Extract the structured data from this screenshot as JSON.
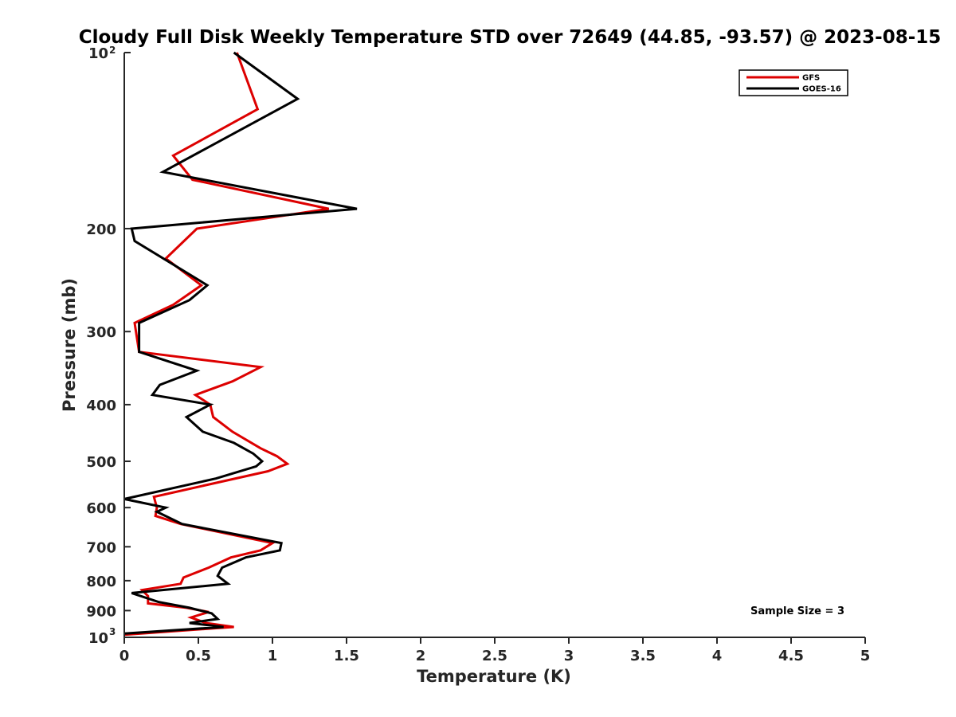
{
  "chart_data": {
    "type": "line",
    "title": "Cloudy Full Disk Weekly Temperature STD over 72649 (44.85, -93.57) @ 2023-08-15",
    "xlabel": "Temperature (K)",
    "ylabel": "Pressure (mb)",
    "xlim": [
      0,
      5
    ],
    "ylim": [
      1000,
      100
    ],
    "y_scale": "log",
    "y_reversed": true,
    "grid": false,
    "legend_position": "top-right",
    "x_ticks": [
      "0",
      "0.5",
      "1",
      "1.5",
      "2",
      "2.5",
      "3",
      "3.5",
      "4",
      "4.5",
      "5"
    ],
    "y_ticks": [
      {
        "value": 100,
        "label": "10",
        "exp": "2"
      },
      {
        "value": 200,
        "label": "200",
        "exp": ""
      },
      {
        "value": 300,
        "label": "300",
        "exp": ""
      },
      {
        "value": 400,
        "label": "400",
        "exp": ""
      },
      {
        "value": 500,
        "label": "500",
        "exp": ""
      },
      {
        "value": 600,
        "label": "600",
        "exp": ""
      },
      {
        "value": 700,
        "label": "700",
        "exp": ""
      },
      {
        "value": 800,
        "label": "800",
        "exp": ""
      },
      {
        "value": 900,
        "label": "900",
        "exp": ""
      },
      {
        "value": 1000,
        "label": "10",
        "exp": "3"
      }
    ],
    "series": [
      {
        "name": "GFS",
        "color": "#dd0000",
        "points": [
          [
            0.76,
            100
          ],
          [
            0.9,
            125
          ],
          [
            0.33,
            150
          ],
          [
            0.46,
            165
          ],
          [
            1.38,
            185
          ],
          [
            0.49,
            200
          ],
          [
            0.28,
            225
          ],
          [
            0.52,
            250
          ],
          [
            0.33,
            270
          ],
          [
            0.07,
            290
          ],
          [
            0.1,
            325
          ],
          [
            0.92,
            345
          ],
          [
            0.73,
            365
          ],
          [
            0.48,
            385
          ],
          [
            0.58,
            400
          ],
          [
            0.6,
            420
          ],
          [
            0.73,
            445
          ],
          [
            0.92,
            475
          ],
          [
            1.03,
            490
          ],
          [
            1.1,
            505
          ],
          [
            0.97,
            520
          ],
          [
            0.2,
            575
          ],
          [
            0.22,
            600
          ],
          [
            0.21,
            620
          ],
          [
            0.38,
            640
          ],
          [
            1.0,
            690
          ],
          [
            0.92,
            710
          ],
          [
            0.72,
            730
          ],
          [
            0.57,
            760
          ],
          [
            0.4,
            790
          ],
          [
            0.38,
            810
          ],
          [
            0.12,
            830
          ],
          [
            0.16,
            850
          ],
          [
            0.16,
            875
          ],
          [
            0.42,
            890
          ],
          [
            0.57,
            905
          ],
          [
            0.45,
            925
          ],
          [
            0.55,
            945
          ],
          [
            0.74,
            960
          ],
          [
            0.61,
            965
          ],
          [
            0.0,
            990
          ]
        ]
      },
      {
        "name": "GOES-16",
        "color": "#000000",
        "points": [
          [
            0.74,
            100
          ],
          [
            1.17,
            120
          ],
          [
            0.26,
            160
          ],
          [
            1.57,
            185
          ],
          [
            0.05,
            200
          ],
          [
            0.07,
            210
          ],
          [
            0.56,
            250
          ],
          [
            0.44,
            265
          ],
          [
            0.1,
            290
          ],
          [
            0.1,
            325
          ],
          [
            0.49,
            350
          ],
          [
            0.24,
            370
          ],
          [
            0.19,
            385
          ],
          [
            0.58,
            400
          ],
          [
            0.42,
            420
          ],
          [
            0.53,
            445
          ],
          [
            0.74,
            465
          ],
          [
            0.87,
            485
          ],
          [
            0.93,
            500
          ],
          [
            0.89,
            510
          ],
          [
            0.62,
            535
          ],
          [
            0.0,
            580
          ],
          [
            0.28,
            600
          ],
          [
            0.22,
            610
          ],
          [
            0.39,
            640
          ],
          [
            1.06,
            690
          ],
          [
            1.05,
            710
          ],
          [
            0.82,
            730
          ],
          [
            0.66,
            760
          ],
          [
            0.63,
            785
          ],
          [
            0.7,
            810
          ],
          [
            0.05,
            840
          ],
          [
            0.23,
            870
          ],
          [
            0.44,
            890
          ],
          [
            0.59,
            910
          ],
          [
            0.63,
            930
          ],
          [
            0.44,
            945
          ],
          [
            0.67,
            960
          ],
          [
            0.0,
            985
          ]
        ]
      }
    ],
    "annotation": "Sample Size = 3"
  }
}
